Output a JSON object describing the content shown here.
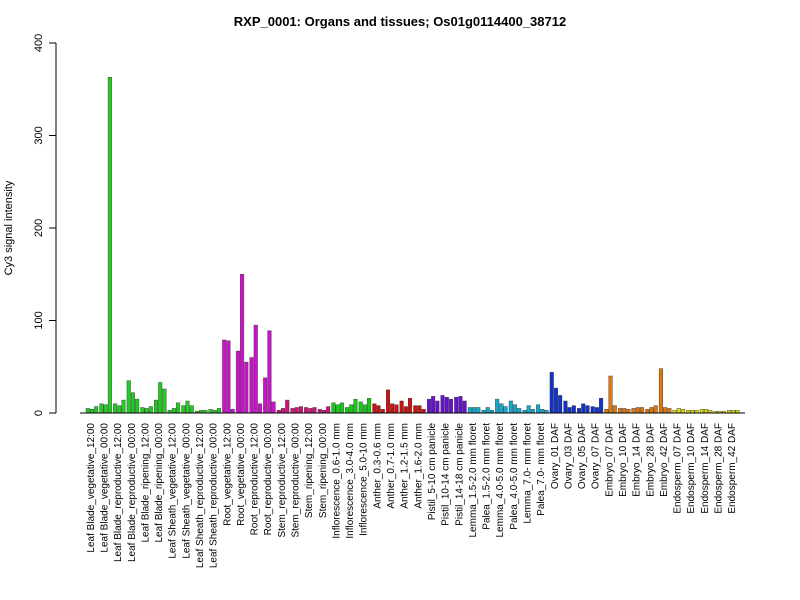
{
  "chart_data": {
    "type": "bar",
    "title": "RXP_0001: Organs and tissues; Os01g0114400_38712",
    "xlabel": "",
    "ylabel": "Cy3 signal intensity",
    "ylim": [
      0,
      400
    ],
    "yticks": [
      0,
      100,
      200,
      300,
      400
    ],
    "grid": false,
    "categories": [
      "Leaf Blade_vegetative_12:00",
      "Leaf Blade_vegetative_00:00",
      "Leaf Blade_reproductive_12:00",
      "Leaf Blade_reproductive_00:00",
      "Leaf Blade_ripening_12:00",
      "Leaf Blade_ripening_00:00",
      "Leaf Sheath_vegetative_12:00",
      "Leaf Sheath_vegetative_00:00",
      "Leaf Sheath_reproductive_12:00",
      "Leaf Sheath_reproductive_00:00",
      "Root_vegetative_12:00",
      "Root_vegetative_00:00",
      "Root_reproductive_12:00",
      "Root_reproductive_00:00",
      "Stem_reproductive_12:00",
      "Stem_reproductive_00:00",
      "Stem_ripening_12:00",
      "Stem_ripening_00:00",
      "Inflorescence_0.6-1.0 mm",
      "Inflorescence_3.0-4.0 mm",
      "Inflorescence_5.0-10 mm",
      "Anther_0.3-0.6 mm",
      "Anther_0.7-1.0 mm",
      "Anther_1.2-1.5 mm",
      "Anther_1.6-2.0 mm",
      "Pistil_5-10 cm panicle",
      "Pistil_10-14 cm panicle",
      "Pistil_14-18 cm panicle",
      "Lemma_1.5-2.0 mm floret",
      "Palea_1.5-2.0 mm floret",
      "Lemma_4.0-5.0 mm floret",
      "Palea_4.0-5.0 mm floret",
      "Lemma_7.0- mm floret",
      "Palea_7.0- mm floret",
      "Ovary_01 DAF",
      "Ovary_03 DAF",
      "Ovary_05 DAF",
      "Ovary_07 DAF",
      "Embryo_07 DAF",
      "Embryo_10 DAF",
      "Embryo_14 DAF",
      "Embryo_28 DAF",
      "Embryo_42 DAF",
      "Endosperm_07 DAF",
      "Endosperm_10 DAF",
      "Endosperm_14 DAF",
      "Endosperm_28 DAF",
      "Endosperm_42 DAF"
    ],
    "group_colors": [
      "#22cc22",
      "#22cc22",
      "#22cc22",
      "#22cc22",
      "#22cc22",
      "#22cc22",
      "#22cc22",
      "#22cc22",
      "#22cc22",
      "#22cc22",
      "#cc11cc",
      "#cc11cc",
      "#cc11cc",
      "#cc11cc",
      "#cc1177",
      "#cc1177",
      "#cc1177",
      "#cc1177",
      "#11cc11",
      "#11cc11",
      "#11cc11",
      "#cc1111",
      "#cc1111",
      "#cc1111",
      "#cc1111",
      "#6611cc",
      "#6611cc",
      "#6611cc",
      "#11aacc",
      "#11aacc",
      "#11aacc",
      "#11aacc",
      "#11aacc",
      "#11aacc",
      "#1133cc",
      "#1133cc",
      "#1133cc",
      "#1133cc",
      "#dd7711",
      "#dd7711",
      "#dd7711",
      "#dd7711",
      "#dd7711",
      "#dddd11",
      "#dddd11",
      "#dddd11",
      "#dddd11",
      "#dddd11"
    ],
    "replicates": [
      [
        5,
        4,
        7
      ],
      [
        10,
        9,
        363
      ],
      [
        10,
        8,
        14
      ],
      [
        35,
        22,
        15
      ],
      [
        6,
        5,
        7
      ],
      [
        14,
        33,
        26
      ],
      [
        3,
        5,
        11
      ],
      [
        8,
        13,
        8
      ],
      [
        2,
        3,
        3
      ],
      [
        4,
        3,
        5
      ],
      [
        79,
        78,
        4
      ],
      [
        67,
        150,
        55
      ],
      [
        60,
        95,
        10
      ],
      [
        38,
        89,
        12
      ],
      [
        3,
        5,
        14
      ],
      [
        5,
        6,
        7
      ],
      [
        6,
        5,
        6
      ],
      [
        4,
        3,
        7
      ],
      [
        11,
        9,
        11
      ],
      [
        6,
        9,
        15
      ],
      [
        12,
        9,
        16
      ],
      [
        10,
        8,
        4
      ],
      [
        25,
        10,
        9
      ],
      [
        13,
        7,
        16
      ],
      [
        8,
        8,
        4
      ],
      [
        15,
        18,
        13
      ],
      [
        19,
        17,
        15
      ],
      [
        17,
        18,
        13
      ],
      [
        6,
        6,
        6
      ],
      [
        3,
        6,
        3
      ],
      [
        15,
        10,
        7
      ],
      [
        13,
        9,
        5
      ],
      [
        3,
        8,
        4
      ],
      [
        9,
        4,
        3
      ],
      [
        44,
        27,
        19
      ],
      [
        13,
        6,
        8
      ],
      [
        5,
        10,
        8
      ],
      [
        7,
        6,
        16
      ],
      [
        4,
        40,
        8
      ],
      [
        5,
        5,
        4
      ],
      [
        5,
        6,
        6
      ],
      [
        4,
        6,
        8
      ],
      [
        48,
        6,
        5
      ],
      [
        3,
        5,
        4
      ],
      [
        3,
        3,
        3
      ],
      [
        4,
        4,
        3
      ],
      [
        2,
        2,
        2
      ],
      [
        3,
        3,
        3
      ]
    ]
  }
}
